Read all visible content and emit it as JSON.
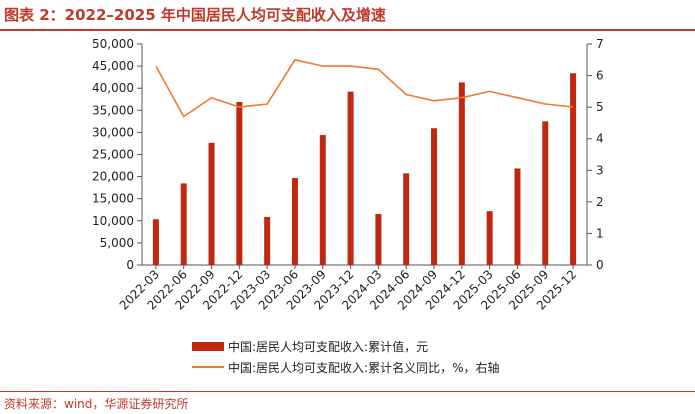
{
  "header": {
    "title": "图表 2：2022–2025 年中国居民人均可支配收入及增速"
  },
  "footer": {
    "source": "资料来源：wind，华源证券研究所"
  },
  "colors": {
    "bar": "#c0280f",
    "line": "#f07a2e",
    "accent": "#c0392b"
  },
  "chart_data": {
    "type": "bar",
    "title": "",
    "xlabel": "",
    "ylabel": "",
    "categories": [
      "2022-03",
      "2022-06",
      "2022-09",
      "2022-12",
      "2023-03",
      "2023-06",
      "2023-09",
      "2023-12",
      "2024-03",
      "2024-06",
      "2024-09",
      "2024-12",
      "2025-03",
      "2025-06",
      "2025-09",
      "2025-12"
    ],
    "series": [
      {
        "name": "中国:居民人均可支配收入:累计值，元",
        "type": "bar",
        "axis": "left",
        "values": [
          10345,
          18463,
          27650,
          36883,
          10870,
          19672,
          29398,
          39218,
          11539,
          20733,
          30941,
          41314,
          12179,
          21840,
          32509,
          43377
        ]
      },
      {
        "name": "中国:居民人均可支配收入:累计名义同比，%，右轴",
        "type": "line",
        "axis": "right",
        "values": [
          6.3,
          4.7,
          5.3,
          5.0,
          5.1,
          6.5,
          6.3,
          6.3,
          6.2,
          5.4,
          5.2,
          5.3,
          5.5,
          5.3,
          5.1,
          5.0
        ]
      }
    ],
    "y_left": {
      "ylim": [
        0,
        50000
      ],
      "ticks": [
        "0",
        "5,000",
        "10,000",
        "15,000",
        "20,000",
        "25,000",
        "30,000",
        "35,000",
        "40,000",
        "45,000",
        "50,000"
      ]
    },
    "y_right": {
      "ylim": [
        0,
        7
      ],
      "ticks": [
        "0",
        "1",
        "2",
        "3",
        "4",
        "5",
        "6",
        "7"
      ]
    },
    "grid": false,
    "legend": "bottom"
  }
}
